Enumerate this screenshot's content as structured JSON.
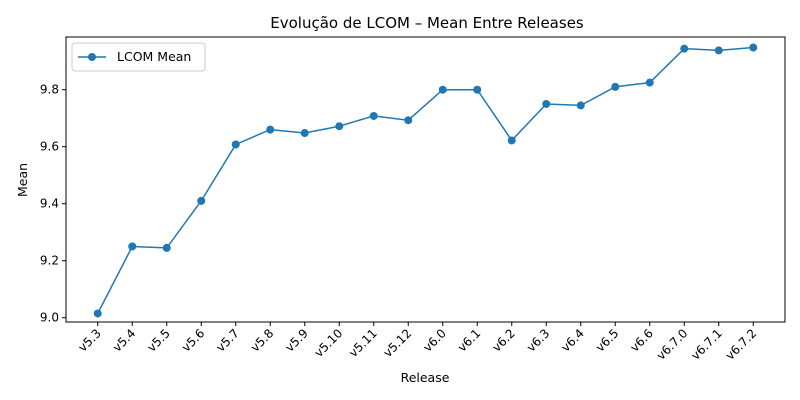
{
  "chart_data": {
    "type": "line",
    "title": "Evolução de LCOM – Mean Entre Releases",
    "xlabel": "Release",
    "ylabel": "Mean",
    "ylim": [
      8.985,
      9.985
    ],
    "yticks": [
      "9.0",
      "9.2",
      "9.4",
      "9.6",
      "9.8"
    ],
    "categories": [
      "v5.3",
      "v5.4",
      "v5.5",
      "v5.6",
      "v5.7",
      "v5.8",
      "v5.9",
      "v5.10",
      "v5.11",
      "v5.12",
      "v6.0",
      "v6.1",
      "v6.2",
      "v6.3",
      "v6.4",
      "v6.5",
      "v6.6",
      "v6.7.0",
      "v6.7.1",
      "v6.7.2"
    ],
    "series": [
      {
        "name": "LCOM Mean",
        "color": "#1f77b4",
        "marker": "circle",
        "values": [
          9.015,
          9.25,
          9.245,
          9.41,
          9.608,
          9.66,
          9.648,
          9.672,
          9.708,
          9.693,
          9.8,
          9.8,
          9.622,
          9.75,
          9.745,
          9.81,
          9.825,
          9.944,
          9.938,
          9.948
        ]
      }
    ],
    "legend_position": "top-left",
    "grid": false
  }
}
